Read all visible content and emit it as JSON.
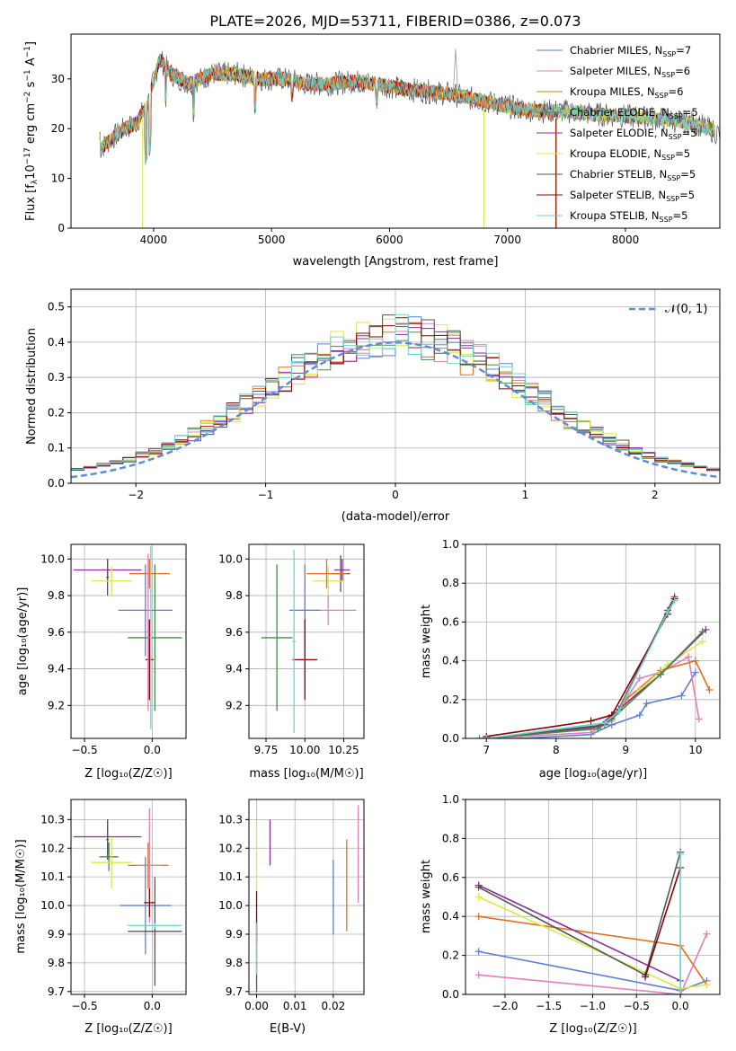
{
  "title": "PLATE=2026, MJD=53711, FIBERID=0386, z=0.073",
  "colors": {
    "blue": "#5b7fd6",
    "pink": "#e07fb8",
    "olive": "#b58a00",
    "green": "#4a8a4a",
    "purple": "#8a2c9a",
    "lime": "#d9e84a",
    "gray": "#555555",
    "red": "#8b0000",
    "cyan": "#6fd0d0",
    "orange": "#e07020",
    "ltgreen": "#9ccf7a",
    "dashed": "#5b8ed6"
  },
  "chart_data": [
    {
      "id": "spectrum",
      "type": "line",
      "xlabel": "wavelength [Angstrom, rest frame]",
      "ylabel": "Flux [f",
      "ylabel_sub": "λ",
      "ylabel_tail": "10",
      "ylabel_exp": "−17",
      "ylabel_units": " erg cm",
      "ylabel_exp2": "−2",
      "ylabel_units2": " s",
      "ylabel_exp3": "−1",
      "ylabel_units3": " A",
      "ylabel_exp4": "−1",
      "ylabel_end": "]",
      "xlim": [
        3300,
        8800
      ],
      "ylim": [
        0,
        39
      ],
      "xticks": [
        4000,
        5000,
        6000,
        7000,
        8000
      ],
      "yticks": [
        0,
        10,
        20,
        30
      ],
      "anchors": [
        [
          3550,
          16
        ],
        [
          3650,
          18
        ],
        [
          3750,
          20
        ],
        [
          3850,
          21
        ],
        [
          3950,
          25
        ],
        [
          4050,
          34
        ],
        [
          4150,
          31
        ],
        [
          4300,
          29
        ],
        [
          4500,
          31
        ],
        [
          4700,
          31
        ],
        [
          4900,
          30
        ],
        [
          5100,
          30
        ],
        [
          5300,
          29
        ],
        [
          5500,
          29
        ],
        [
          5700,
          29.5
        ],
        [
          5900,
          29
        ],
        [
          6100,
          28
        ],
        [
          6300,
          27.5
        ],
        [
          6500,
          27
        ],
        [
          6700,
          26
        ],
        [
          6900,
          25
        ],
        [
          7100,
          24
        ],
        [
          7300,
          23.5
        ],
        [
          7500,
          23.5
        ],
        [
          7700,
          23
        ],
        [
          8000,
          22.5
        ],
        [
          8300,
          22
        ],
        [
          8600,
          21
        ],
        [
          8800,
          19
        ]
      ],
      "legend": [
        {
          "label": "Chabrier MILES, N",
          "sub": "SSP",
          "value": "=7",
          "color": "blue"
        },
        {
          "label": "Salpeter MILES, N",
          "sub": "SSP",
          "value": "=6",
          "color": "pink"
        },
        {
          "label": "Kroupa MILES, N",
          "sub": "SSP",
          "value": "=6",
          "color": "olive"
        },
        {
          "label": "Chabrier ELODIE, N",
          "sub": "SSP",
          "value": "=5",
          "color": "green"
        },
        {
          "label": "Salpeter ELODIE, N",
          "sub": "SSP",
          "value": "=5",
          "color": "purple"
        },
        {
          "label": "Kroupa ELODIE, N",
          "sub": "SSP",
          "value": "=5",
          "color": "lime"
        },
        {
          "label": "Chabrier STELIB, N",
          "sub": "SSP",
          "value": "=5",
          "color": "gray"
        },
        {
          "label": "Salpeter STELIB, N",
          "sub": "SSP",
          "value": "=5",
          "color": "red"
        },
        {
          "label": "Kroupa STELIB, N",
          "sub": "SSP",
          "value": "=5",
          "color": "cyan"
        }
      ]
    },
    {
      "id": "residuals",
      "type": "histogram",
      "xlabel": "(data-model)/error",
      "ylabel": "Normed distribution",
      "xlim": [
        -2.5,
        2.5
      ],
      "ylim": [
        0,
        0.55
      ],
      "xticks": [
        -2,
        -1,
        0,
        1,
        2
      ],
      "yticks": [
        0.0,
        0.1,
        0.2,
        0.3,
        0.4,
        0.5
      ],
      "legend_label": "𝒩(0, 1)",
      "bin_width": 0.1,
      "series_colors": [
        "blue",
        "pink",
        "orange",
        "green",
        "purple",
        "lime",
        "gray",
        "red",
        "cyan"
      ]
    },
    {
      "id": "age_vs_Z",
      "type": "errorbar",
      "xlabel": "Z [log₁₀(Z/Z☉)]",
      "ylabel": "age  [log₁₀(age/yr)]",
      "xlim": [
        -0.6,
        0.25
      ],
      "ylim": [
        9.02,
        10.08
      ],
      "xticks": [
        -0.5,
        0.0
      ],
      "xticklabels": [
        "−0.5",
        "0.0"
      ],
      "yticks": [
        9.2,
        9.4,
        9.6,
        9.8,
        10.0
      ],
      "points": [
        {
          "x": -0.33,
          "xerr": 0.25,
          "y": 9.94,
          "yerr": 0.06,
          "color": "purple"
        },
        {
          "x": -0.33,
          "xerr": 0.01,
          "y": 9.9,
          "yerr": 0.1,
          "color": "gray"
        },
        {
          "x": -0.3,
          "xerr": 0.15,
          "y": 9.88,
          "yerr": 0.08,
          "color": "lime"
        },
        {
          "x": -0.02,
          "xerr": 0.15,
          "y": 9.92,
          "yerr": 0.08,
          "color": "orange"
        },
        {
          "x": -0.05,
          "xerr": 0.2,
          "y": 9.72,
          "yerr": 0.25,
          "color": "blue"
        },
        {
          "x": 0.02,
          "xerr": 0.2,
          "y": 9.57,
          "yerr": 0.4,
          "color": "green"
        },
        {
          "x": -0.02,
          "xerr": 0.03,
          "y": 9.45,
          "yerr": 0.22,
          "color": "red"
        },
        {
          "x": -0.03,
          "xerr": 0.01,
          "y": 9.6,
          "yerr": 0.43,
          "color": "pink"
        },
        {
          "x": -0.01,
          "xerr": 0.01,
          "y": 9.57,
          "yerr": 0.5,
          "color": "cyan"
        }
      ]
    },
    {
      "id": "age_vs_mass",
      "type": "errorbar",
      "xlabel": "mass [log₁₀(M/M☉)]",
      "ylabel": "",
      "xlim": [
        9.64,
        10.38
      ],
      "ylim": [
        9.02,
        10.08
      ],
      "xticks": [
        9.75,
        10.0,
        10.25
      ],
      "xticklabels": [
        "9.75",
        "10.00",
        "10.25"
      ],
      "yticks": [
        9.2,
        9.4,
        9.6,
        9.8,
        10.0
      ],
      "points": [
        {
          "x": 10.24,
          "xerr": 0.05,
          "y": 9.94,
          "yerr": 0.06,
          "color": "purple"
        },
        {
          "x": 10.23,
          "xerr": 0.06,
          "y": 9.92,
          "yerr": 0.1,
          "color": "gray"
        },
        {
          "x": 10.15,
          "xerr": 0.1,
          "y": 9.88,
          "yerr": 0.08,
          "color": "lime"
        },
        {
          "x": 10.14,
          "xerr": 0.13,
          "y": 9.92,
          "yerr": 0.08,
          "color": "orange"
        },
        {
          "x": 10.15,
          "xerr": 0.18,
          "y": 9.72,
          "yerr": 0.08,
          "color": "pink"
        },
        {
          "x": 10.0,
          "xerr": 0.1,
          "y": 9.72,
          "yerr": 0.25,
          "color": "blue"
        },
        {
          "x": 9.82,
          "xerr": 0.1,
          "y": 9.57,
          "yerr": 0.4,
          "color": "green"
        },
        {
          "x": 10.0,
          "xerr": 0.08,
          "y": 9.45,
          "yerr": 0.22,
          "color": "red"
        },
        {
          "x": 9.93,
          "xerr": 0.01,
          "y": 9.55,
          "yerr": 0.5,
          "color": "cyan"
        }
      ]
    },
    {
      "id": "mass_weight_vs_age",
      "type": "line",
      "xlabel": "age  [log₁₀(age/yr)]",
      "ylabel": "mass weight",
      "xlim": [
        6.7,
        10.35
      ],
      "ylim": [
        0,
        1.0
      ],
      "xticks": [
        7,
        8,
        9,
        10
      ],
      "yticks": [
        0.0,
        0.2,
        0.4,
        0.6,
        0.8,
        1.0
      ],
      "series": [
        {
          "color": "blue",
          "x": [
            6.9,
            7.5,
            8.5,
            8.8,
            9.2,
            9.3,
            9.8,
            10.0
          ],
          "y": [
            0.0,
            0.0,
            0.02,
            0.07,
            0.12,
            0.18,
            0.22,
            0.34
          ]
        },
        {
          "color": "pink",
          "x": [
            7.0,
            8.5,
            8.8,
            9.2,
            9.5,
            9.9,
            10.05
          ],
          "y": [
            0.0,
            0.03,
            0.09,
            0.31,
            0.34,
            0.42,
            0.1
          ]
        },
        {
          "color": "orange",
          "x": [
            7.0,
            8.5,
            8.8,
            9.0,
            9.5,
            10.0,
            10.2
          ],
          "y": [
            0.0,
            0.05,
            0.1,
            0.2,
            0.35,
            0.4,
            0.25
          ]
        },
        {
          "color": "lime",
          "x": [
            7.0,
            8.6,
            8.8,
            9.2,
            9.6,
            10.1
          ],
          "y": [
            0.0,
            0.05,
            0.1,
            0.25,
            0.38,
            0.5
          ]
        },
        {
          "color": "purple",
          "x": [
            7.0,
            8.6,
            8.8,
            9.5,
            10.15
          ],
          "y": [
            0.0,
            0.06,
            0.12,
            0.33,
            0.56
          ]
        },
        {
          "color": "green",
          "x": [
            7.0,
            8.6,
            8.8,
            9.5,
            10.1
          ],
          "y": [
            0.0,
            0.05,
            0.1,
            0.33,
            0.55
          ]
        },
        {
          "color": "gray",
          "x": [
            7.0,
            8.7,
            8.9,
            9.6,
            9.7
          ],
          "y": [
            0.0,
            0.07,
            0.15,
            0.66,
            0.73
          ]
        },
        {
          "color": "red",
          "x": [
            7.0,
            8.5,
            8.8,
            9.6,
            9.7
          ],
          "y": [
            0.01,
            0.09,
            0.12,
            0.64,
            0.72
          ]
        },
        {
          "color": "cyan",
          "x": [
            7.0,
            8.7,
            8.9,
            9.6,
            9.7
          ],
          "y": [
            0.0,
            0.08,
            0.14,
            0.65,
            0.71
          ]
        }
      ]
    },
    {
      "id": "mass_vs_Z",
      "type": "errorbar",
      "xlabel": "Z [log₁₀(Z/Z☉)]",
      "ylabel": "mass [log₁₀(M/M☉)]",
      "xlim": [
        -0.6,
        0.25
      ],
      "ylim": [
        9.69,
        10.37
      ],
      "xticks": [
        -0.5,
        0.0
      ],
      "xticklabels": [
        "−0.5",
        "0.0"
      ],
      "yticks": [
        9.7,
        9.8,
        9.9,
        10.0,
        10.1,
        10.2,
        10.3
      ],
      "points": [
        {
          "x": -0.33,
          "xerr": 0.25,
          "y": 10.24,
          "yerr": 0.06,
          "color": "purple"
        },
        {
          "x": -0.33,
          "xerr": 0.01,
          "y": 10.23,
          "yerr": 0.07,
          "color": "gray"
        },
        {
          "x": -0.32,
          "xerr": 0.07,
          "y": 10.17,
          "yerr": 0.05,
          "color": "green"
        },
        {
          "x": -0.3,
          "xerr": 0.15,
          "y": 10.15,
          "yerr": 0.09,
          "color": "lime"
        },
        {
          "x": -0.03,
          "xerr": 0.15,
          "y": 10.14,
          "yerr": 0.08,
          "color": "orange"
        },
        {
          "x": -0.02,
          "xerr": 0.1,
          "y": 10.14,
          "yerr": 0.2,
          "color": "pink"
        },
        {
          "x": -0.05,
          "xerr": 0.19,
          "y": 10.0,
          "yerr": 0.17,
          "color": "blue"
        },
        {
          "x": -0.02,
          "xerr": 0.04,
          "y": 10.01,
          "yerr": 0.05,
          "color": "red"
        },
        {
          "x": 0.02,
          "xerr": 0.2,
          "y": 9.91,
          "yerr": 0.19,
          "color": "gray"
        },
        {
          "x": 0.02,
          "xerr": 0.2,
          "y": 9.93,
          "yerr": 0.01,
          "color": "cyan"
        }
      ]
    },
    {
      "id": "mass_vs_ebv",
      "type": "errorbar",
      "xlabel": "E(B-V)",
      "ylabel": "",
      "xlim": [
        -0.002,
        0.028
      ],
      "ylim": [
        9.69,
        10.37
      ],
      "xticks": [
        0.0,
        0.01,
        0.02
      ],
      "xticklabels": [
        "0.00",
        "0.01",
        "0.02"
      ],
      "yticks": [
        9.7,
        9.8,
        9.9,
        10.0,
        10.1,
        10.2,
        10.3
      ],
      "points": [
        {
          "x": 0.0,
          "xerr": 0,
          "y": 10.16,
          "yerr": 0.12,
          "color": "lime"
        },
        {
          "x": 0.0,
          "xerr": 0,
          "y": 9.82,
          "yerr": 0.12,
          "color": "gray"
        },
        {
          "x": 0.0,
          "xerr": 0,
          "y": 9.96,
          "yerr": 0.09,
          "color": "red"
        },
        {
          "x": 0.0,
          "xerr": 0,
          "y": 9.85,
          "yerr": 0.09,
          "color": "cyan"
        },
        {
          "x": 0.0035,
          "xerr": 0,
          "y": 10.22,
          "yerr": 0.08,
          "color": "purple"
        },
        {
          "x": 0.02,
          "xerr": 0,
          "y": 10.03,
          "yerr": 0.13,
          "color": "blue"
        },
        {
          "x": 0.0235,
          "xerr": 0,
          "y": 10.07,
          "yerr": 0.16,
          "color": "orange"
        },
        {
          "x": 0.0265,
          "xerr": 0,
          "y": 10.18,
          "yerr": 0.17,
          "color": "pink"
        }
      ]
    },
    {
      "id": "mass_weight_vs_Z",
      "type": "line",
      "xlabel": "Z [log₁₀(Z/Z☉)]",
      "ylabel": "mass weight",
      "xlim": [
        -2.45,
        0.45
      ],
      "ylim": [
        0,
        1.0
      ],
      "xticks": [
        -2.0,
        -1.5,
        -1.0,
        -0.5,
        0.0
      ],
      "xticklabels": [
        "−2.0",
        "−1.5",
        "−1.0",
        "−0.5",
        "0.0"
      ],
      "yticks": [
        0.0,
        0.2,
        0.4,
        0.6,
        0.8,
        1.0
      ],
      "series": [
        {
          "color": "blue",
          "x": [
            -2.3,
            0.0,
            0.3
          ],
          "y": [
            0.22,
            0.02,
            0.07
          ]
        },
        {
          "color": "pink",
          "x": [
            -2.3,
            0.0,
            0.3
          ],
          "y": [
            0.1,
            0.0,
            0.31
          ]
        },
        {
          "color": "orange",
          "x": [
            -2.3,
            0.0,
            0.3
          ],
          "y": [
            0.4,
            0.25,
            0.05
          ]
        },
        {
          "color": "lime",
          "x": [
            -2.3,
            0.0,
            0.3
          ],
          "y": [
            0.5,
            0.03,
            0.05
          ]
        },
        {
          "color": "purple",
          "x": [
            -2.3,
            0.0
          ],
          "y": [
            0.56,
            0.07
          ]
        },
        {
          "color": "gray",
          "x": [
            -2.3,
            -0.4,
            0.0
          ],
          "y": [
            0.55,
            0.1,
            0.73
          ]
        },
        {
          "color": "red",
          "x": [
            -0.4,
            0.0
          ],
          "y": [
            0.09,
            0.65
          ]
        },
        {
          "color": "cyan",
          "x": [
            0.0,
            0.0
          ],
          "y": [
            0.0,
            0.72
          ]
        }
      ]
    }
  ]
}
